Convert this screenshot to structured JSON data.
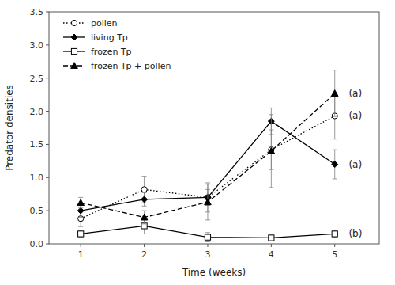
{
  "chart_data": {
    "type": "line",
    "xlabel": "Time (weeks)",
    "ylabel": "Predator densities",
    "x": [
      1,
      2,
      3,
      4,
      5
    ],
    "xlim": [
      0.5,
      5.7
    ],
    "xticks": [
      1,
      2,
      3,
      4,
      5
    ],
    "ylim": [
      0,
      3.5
    ],
    "yticks": [
      {
        "value": 0,
        "label": "0.0"
      },
      0.5,
      {
        "value": 1.0,
        "label": "1.0"
      },
      1.5,
      {
        "value": 2.0,
        "label": "2.0"
      },
      2.5,
      {
        "value": 3.0,
        "label": "3.0"
      },
      3.5
    ],
    "grid": false,
    "legend": "upper left",
    "series": [
      {
        "name": "pollen",
        "color": "black",
        "marker": "circle-open",
        "line_style": "dotted",
        "values": [
          0.38,
          0.82,
          0.7,
          1.42,
          1.93
        ],
        "errors": [
          0.12,
          0.2,
          0.22,
          0.3,
          0.35
        ]
      },
      {
        "name": "living Tp",
        "color": "black",
        "marker": "diamond",
        "line_style": "solid",
        "values": [
          0.5,
          0.67,
          0.7,
          1.85,
          1.2
        ],
        "errors": [
          0.1,
          0.1,
          0.12,
          0.2,
          0.22
        ]
      },
      {
        "name": "frozen Tp",
        "color": "black",
        "marker": "square-open",
        "line_style": "solid",
        "values": [
          0.15,
          0.27,
          0.1,
          0.09,
          0.15
        ],
        "errors": [
          0.05,
          0.12,
          0.07,
          0.04,
          0.05
        ]
      },
      {
        "name": "frozen Tp + pollen",
        "color": "black",
        "marker": "triangle",
        "line_style": "dashed",
        "values": [
          0.62,
          0.4,
          0.63,
          1.4,
          2.27
        ],
        "errors": [
          0.08,
          0.1,
          0.27,
          0.55,
          0.35
        ]
      }
    ],
    "annotations": [
      {
        "text": "(a)",
        "x": 5.22,
        "y": 2.27
      },
      {
        "text": "(a)",
        "x": 5.22,
        "y": 1.93
      },
      {
        "text": "(a)",
        "x": 5.22,
        "y": 1.2
      },
      {
        "text": "(b)",
        "x": 5.22,
        "y": 0.15
      }
    ]
  }
}
